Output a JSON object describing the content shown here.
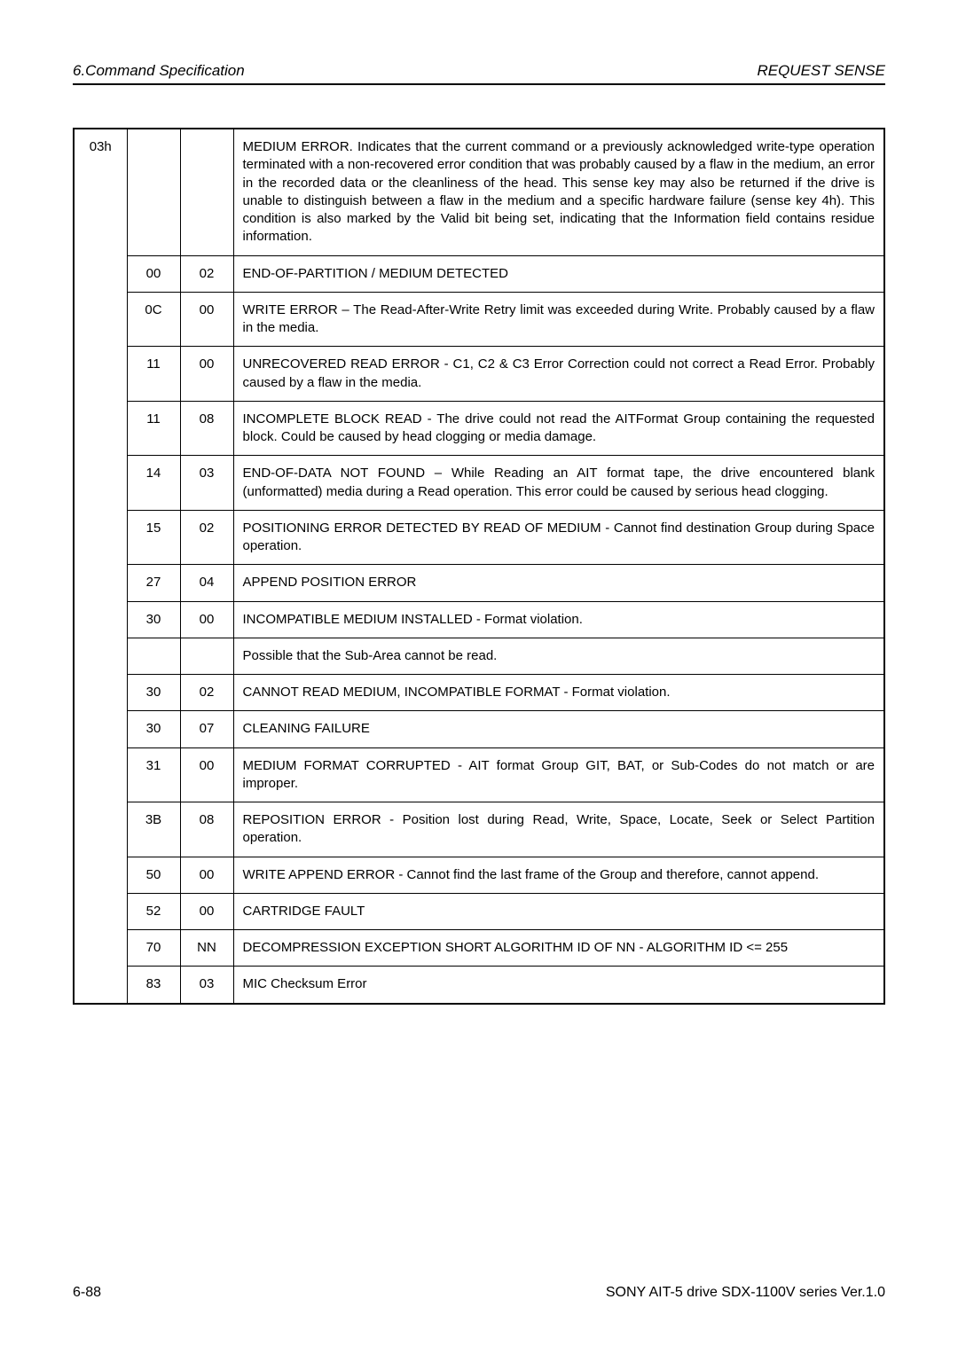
{
  "header": {
    "left": "6.Command Specification",
    "right": "REQUEST SENSE"
  },
  "senseKey": "03h",
  "rows": [
    {
      "asc": "",
      "ascq": "",
      "desc": "MEDIUM ERROR. Indicates that the current command or a previously acknowledged write-type operation terminated with a non-recovered error condition that was probably caused by a flaw in the medium, an error in the recorded data or the cleanliness of the head. This sense key may also be returned if the drive is unable to distinguish between a flaw in the medium and a specific hardware failure (sense key 4h). This condition is also marked by the Valid bit being set, indicating that the Information field contains residue information."
    },
    {
      "asc": "00",
      "ascq": "02",
      "desc": "END-OF-PARTITION / MEDIUM DETECTED"
    },
    {
      "asc": "0C",
      "ascq": "00",
      "desc": "WRITE ERROR – The Read-After-Write Retry limit was exceeded during Write. Probably caused by a flaw in the media."
    },
    {
      "asc": "11",
      "ascq": "00",
      "desc": "UNRECOVERED READ ERROR - C1, C2 & C3 Error Correction could not correct a Read Error. Probably caused by a flaw in the media."
    },
    {
      "asc": "11",
      "ascq": "08",
      "desc": "INCOMPLETE BLOCK READ - The drive could not read the AITFormat Group containing the requested block.  Could be caused by head clogging or media damage."
    },
    {
      "asc": "14",
      "ascq": "03",
      "desc": "END-OF-DATA NOT FOUND – While Reading an AIT format tape, the drive encountered blank (unformatted) media during a Read operation. This error could be caused by serious head clogging."
    },
    {
      "asc": "15",
      "ascq": "02",
      "desc": "POSITIONING ERROR DETECTED BY READ OF MEDIUM - Cannot find destination Group during Space operation."
    },
    {
      "asc": "27",
      "ascq": "04",
      "desc": "APPEND POSITION ERROR"
    },
    {
      "asc": "30",
      "ascq": "00",
      "desc": "INCOMPATIBLE MEDIUM INSTALLED - Format violation."
    },
    {
      "asc": "",
      "ascq": "",
      "desc": "Possible that the Sub-Area cannot be read."
    },
    {
      "asc": "30",
      "ascq": "02",
      "desc": "CANNOT READ MEDIUM, INCOMPATIBLE FORMAT - Format violation."
    },
    {
      "asc": "30",
      "ascq": "07",
      "desc": "CLEANING FAILURE"
    },
    {
      "asc": "31",
      "ascq": "00",
      "desc": "MEDIUM FORMAT CORRUPTED - AIT format Group GIT, BAT, or Sub-Codes do not match or are improper."
    },
    {
      "asc": "3B",
      "ascq": "08",
      "desc": "REPOSITION ERROR - Position lost during Read, Write, Space, Locate, Seek or Select Partition operation."
    },
    {
      "asc": "50",
      "ascq": "00",
      "desc": "WRITE APPEND ERROR - Cannot find the last frame of the Group and therefore, cannot append."
    },
    {
      "asc": "52",
      "ascq": "00",
      "desc": "CARTRIDGE FAULT"
    },
    {
      "asc": "70",
      "ascq": "NN",
      "desc": "DECOMPRESSION EXCEPTION SHORT ALGORITHM ID OF NN - ALGORITHM ID <= 255"
    },
    {
      "asc": "83",
      "ascq": "03",
      "desc": "MIC Checksum Error"
    }
  ],
  "footer": {
    "left": "6-88",
    "right": "SONY AIT-5 drive SDX-1100V series Ver.1.0"
  }
}
